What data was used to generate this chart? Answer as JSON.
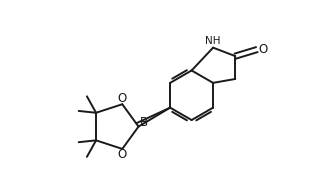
{
  "bg_color": "#ffffff",
  "line_color": "#1a1a1a",
  "line_width": 1.4,
  "font_size": 7.5,
  "xlim": [
    -0.3,
    3.4
  ],
  "ylim": [
    -1.3,
    1.5
  ]
}
